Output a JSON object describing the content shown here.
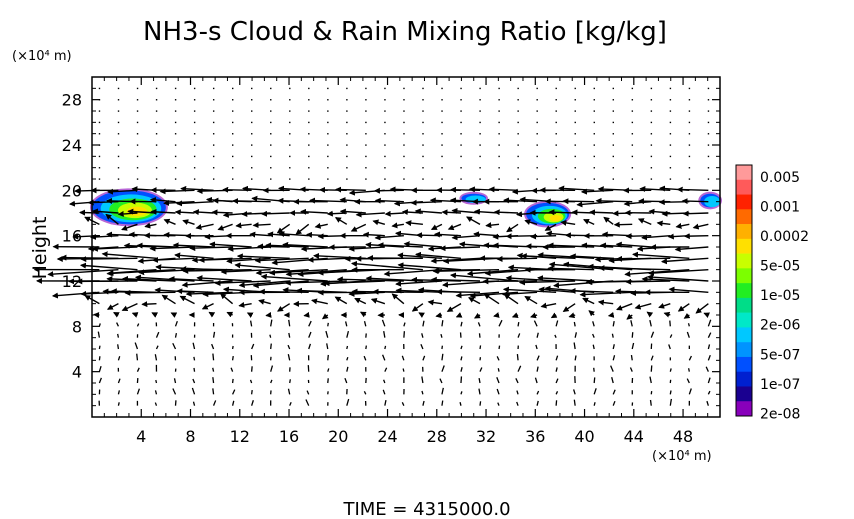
{
  "chart_data": {
    "type": "heatmap",
    "title": "NH3-s Cloud & Rain Mixing Ratio [kg/kg]",
    "ylabel": "Height",
    "yunit": "(×10⁴ m)",
    "xunit": "(×10⁴ m)",
    "footer": "TIME = 4315000.0",
    "x_ticks": [
      4,
      8,
      12,
      16,
      20,
      24,
      28,
      32,
      36,
      40,
      44,
      48
    ],
    "y_ticks": [
      4,
      8,
      12,
      16,
      20,
      24,
      28
    ],
    "xlim": [
      0,
      51
    ],
    "ylim": [
      0,
      30
    ],
    "legend": {
      "labels": [
        "0.005",
        "0.001",
        "0.0002",
        "5e-05",
        "1e-05",
        "2e-06",
        "5e-07",
        "1e-07",
        "2e-08"
      ],
      "colors": [
        "#ff9a9a",
        "#ff5a5a",
        "#ff2200",
        "#ff6a00",
        "#ffb000",
        "#ffe000",
        "#c8ff00",
        "#7cff00",
        "#22ee22",
        "#00dd88",
        "#00e8c8",
        "#00c8ff",
        "#0094ff",
        "#0050ff",
        "#0020d0",
        "#1a0090",
        "#8800bb"
      ]
    },
    "cloud_patches": [
      {
        "x": 3,
        "y": 18.5,
        "w": 6,
        "h": 3
      },
      {
        "x": 37,
        "y": 17.9,
        "w": 3.5,
        "h": 2
      },
      {
        "x": 31,
        "y": 19.3,
        "w": 2,
        "h": 0.8
      },
      {
        "x": 50.2,
        "y": 19.1,
        "w": 1.6,
        "h": 1.2
      }
    ],
    "wind_bands": [
      {
        "y": 20,
        "speed": 3.2
      },
      {
        "y": 19,
        "speed": 3.5
      },
      {
        "y": 18,
        "speed": 2.6
      },
      {
        "y": 17,
        "speed": 1.6
      },
      {
        "y": 16,
        "speed": 2.8
      },
      {
        "y": 15,
        "speed": 4.2
      },
      {
        "y": 14,
        "speed": 5.2
      },
      {
        "y": 13,
        "speed": 6.5
      },
      {
        "y": 12,
        "speed": 6.2
      },
      {
        "y": 11,
        "speed": 4.8
      },
      {
        "y": 10,
        "speed": 1.6
      },
      {
        "y": 9,
        "speed": 0.6
      }
    ]
  }
}
